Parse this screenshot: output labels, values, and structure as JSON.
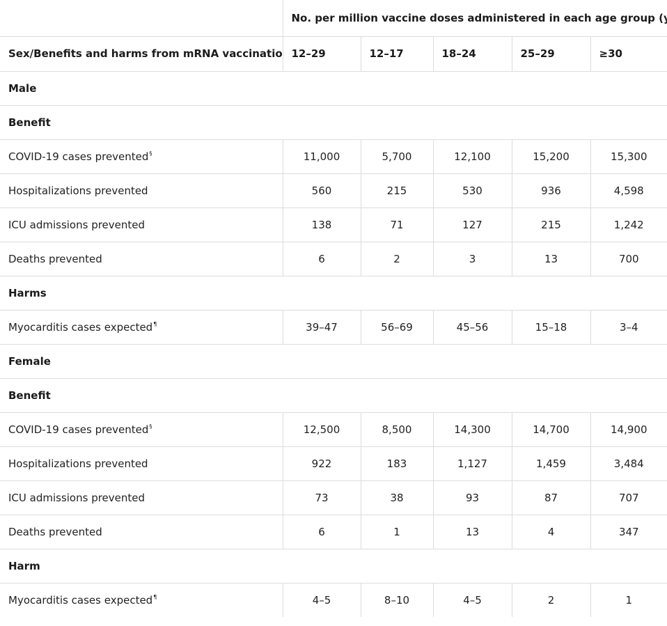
{
  "header": {
    "span_title": "No. per million vaccine doses administered in each age group (yrs)",
    "span_note": "†",
    "row_label_header": "Sex/Benefits and harms from mRNA vaccination",
    "age_groups": [
      "12–29",
      "12–17",
      "18–24",
      "25–29",
      "≥30"
    ]
  },
  "rows": [
    {
      "type": "section",
      "label": "Male"
    },
    {
      "type": "section",
      "label": "Benefit"
    },
    {
      "type": "data",
      "label": "COVID-19 cases prevented",
      "note": "§",
      "values": [
        "11,000",
        "5,700",
        "12,100",
        "15,200",
        "15,300"
      ]
    },
    {
      "type": "data",
      "label": "Hospitalizations prevented",
      "note": "",
      "values": [
        "560",
        "215",
        "530",
        "936",
        "4,598"
      ]
    },
    {
      "type": "data",
      "label": "ICU admissions prevented",
      "note": "",
      "values": [
        "138",
        "71",
        "127",
        "215",
        "1,242"
      ]
    },
    {
      "type": "data",
      "label": "Deaths prevented",
      "note": "",
      "values": [
        "6",
        "2",
        "3",
        "13",
        "700"
      ]
    },
    {
      "type": "section",
      "label": "Harms"
    },
    {
      "type": "data",
      "label": "Myocarditis cases expected",
      "note": "¶",
      "values": [
        "39–47",
        "56–69",
        "45–56",
        "15–18",
        "3–4"
      ]
    },
    {
      "type": "section",
      "label": "Female"
    },
    {
      "type": "section",
      "label": "Benefit"
    },
    {
      "type": "data",
      "label": "COVID-19 cases prevented",
      "note": "§",
      "values": [
        "12,500",
        "8,500",
        "14,300",
        "14,700",
        "14,900"
      ]
    },
    {
      "type": "data",
      "label": "Hospitalizations prevented",
      "note": "",
      "values": [
        "922",
        "183",
        "1,127",
        "1,459",
        "3,484"
      ]
    },
    {
      "type": "data",
      "label": "ICU admissions prevented",
      "note": "",
      "values": [
        "73",
        "38",
        "93",
        "87",
        "707"
      ]
    },
    {
      "type": "data",
      "label": "Deaths prevented",
      "note": "",
      "values": [
        "6",
        "1",
        "13",
        "4",
        "347"
      ]
    },
    {
      "type": "section",
      "label": "Harm"
    },
    {
      "type": "data",
      "label": "Myocarditis cases expected",
      "note": "¶",
      "values": [
        "4–5",
        "8–10",
        "4–5",
        "2",
        "1"
      ]
    }
  ]
}
